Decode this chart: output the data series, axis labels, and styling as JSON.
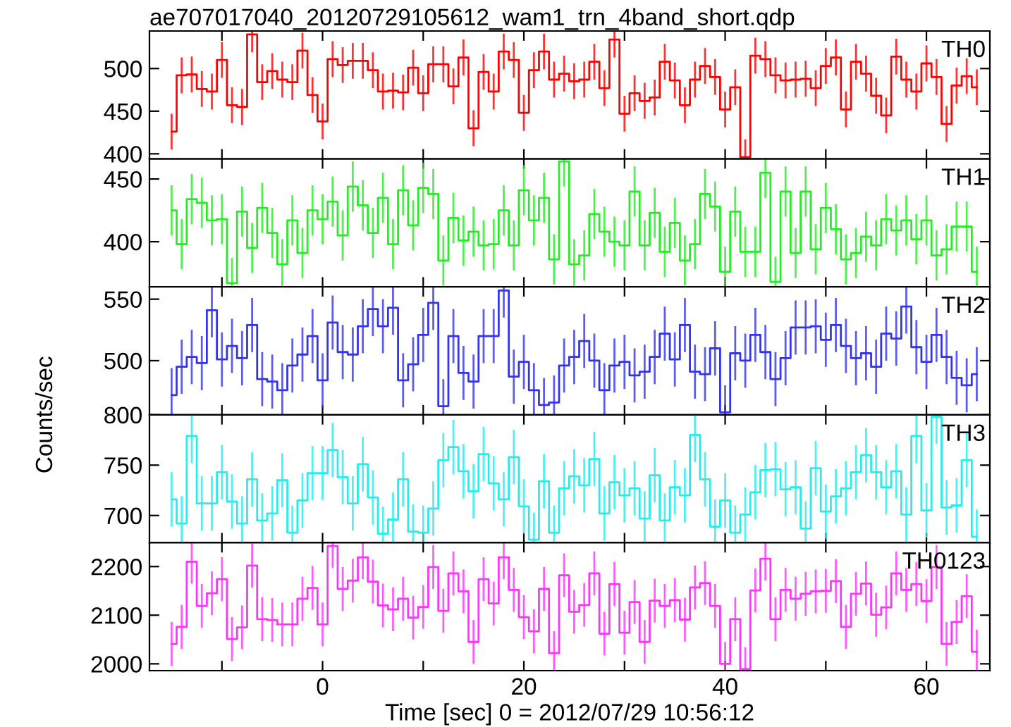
{
  "chart_data": [
    {
      "type": "step",
      "title": "ae707017040_20120729105612_wam1_trn_4band_short.qdp",
      "annotations": [
        "TH0"
      ],
      "tick_labels": "y",
      "grid": false,
      "xlim": [
        -17.2,
        66.3
      ],
      "xticks": [
        {
          "value": -10,
          "label": null
        },
        {
          "value": 0,
          "label": null
        },
        {
          "value": 10,
          "label": null
        },
        {
          "value": 20,
          "label": null
        },
        {
          "value": 30,
          "label": null
        },
        {
          "value": 40,
          "label": null
        },
        {
          "value": 50,
          "label": null
        },
        {
          "value": 60,
          "label": null
        }
      ],
      "ylim": [
        394,
        544
      ],
      "yticks": [
        400,
        450,
        500
      ],
      "x": [
        -15,
        -14,
        -13,
        -12,
        -11,
        -10,
        -9,
        -8,
        -7,
        -6,
        -5,
        -4,
        -3,
        -2,
        -1,
        0,
        1,
        2,
        3,
        4,
        5,
        6,
        7,
        8,
        9,
        10,
        11,
        12,
        13,
        14,
        15,
        16,
        17,
        18,
        19,
        20,
        21,
        22,
        23,
        24,
        25,
        26,
        27,
        28,
        29,
        30,
        31,
        32,
        33,
        34,
        35,
        36,
        37,
        38,
        39,
        40,
        41,
        42,
        43,
        44,
        45,
        46,
        47,
        48,
        49,
        50,
        51,
        52,
        53,
        54,
        55,
        56,
        57,
        58,
        59,
        60,
        61,
        62,
        63,
        64,
        65
      ],
      "series": [
        {
          "color": "#ff0000",
          "values": [
            426,
            492,
            493,
            476,
            473,
            510,
            457,
            455,
            540,
            484,
            497,
            487,
            484,
            521,
            469,
            438,
            511,
            504,
            509,
            509,
            498,
            473,
            474,
            472,
            501,
            471,
            505,
            505,
            479,
            513,
            430,
            496,
            473,
            520,
            510,
            448,
            498,
            520,
            487,
            494,
            485,
            487,
            508,
            477,
            534,
            447,
            471,
            462,
            466,
            508,
            486,
            457,
            487,
            503,
            490,
            452,
            478,
            396,
            515,
            511,
            492,
            486,
            487,
            488,
            477,
            503,
            513,
            452,
            508,
            494,
            468,
            445,
            514,
            487,
            473,
            506,
            490,
            435,
            480,
            491,
            478
          ],
          "errors": [
            21,
            21,
            21,
            21,
            21,
            21,
            21,
            21,
            21,
            21,
            21,
            21,
            21,
            21,
            21,
            21,
            21,
            21,
            21,
            21,
            21,
            21,
            21,
            21,
            21,
            21,
            21,
            21,
            21,
            21,
            21,
            21,
            21,
            21,
            21,
            21,
            21,
            21,
            21,
            21,
            21,
            21,
            21,
            21,
            21,
            21,
            21,
            21,
            21,
            21,
            21,
            21,
            21,
            21,
            21,
            21,
            21,
            21,
            21,
            21,
            21,
            21,
            21,
            21,
            21,
            21,
            21,
            21,
            21,
            21,
            21,
            21,
            21,
            21,
            21,
            21,
            21,
            21,
            21,
            21,
            21
          ]
        }
      ]
    },
    {
      "type": "step",
      "annotations": [
        "TH1"
      ],
      "tick_labels": "y",
      "grid": false,
      "xlim": [
        -17.2,
        66.3
      ],
      "xticks": [
        {
          "value": -10,
          "label": null
        },
        {
          "value": 0,
          "label": null
        },
        {
          "value": 10,
          "label": null
        },
        {
          "value": 20,
          "label": null
        },
        {
          "value": 30,
          "label": null
        },
        {
          "value": 40,
          "label": null
        },
        {
          "value": 50,
          "label": null
        },
        {
          "value": 60,
          "label": null
        }
      ],
      "ylim": [
        364,
        466
      ],
      "yticks": [
        400,
        450
      ],
      "x": [
        -15,
        -14,
        -13,
        -12,
        -11,
        -10,
        -9,
        -8,
        -7,
        -6,
        -5,
        -4,
        -3,
        -2,
        -1,
        0,
        1,
        2,
        3,
        4,
        5,
        6,
        7,
        8,
        9,
        10,
        11,
        12,
        13,
        14,
        15,
        16,
        17,
        18,
        19,
        20,
        21,
        22,
        23,
        24,
        25,
        26,
        27,
        28,
        29,
        30,
        31,
        32,
        33,
        34,
        35,
        36,
        37,
        38,
        39,
        40,
        41,
        42,
        43,
        44,
        45,
        46,
        47,
        48,
        49,
        50,
        51,
        52,
        53,
        54,
        55,
        56,
        57,
        58,
        59,
        60,
        61,
        62,
        63,
        64,
        65
      ],
      "series": [
        {
          "color": "#22ee22",
          "values": [
            425,
            398,
            434,
            431,
            417,
            418,
            367,
            424,
            395,
            427,
            407,
            382,
            417,
            391,
            425,
            418,
            432,
            405,
            444,
            429,
            407,
            435,
            398,
            441,
            413,
            443,
            438,
            385,
            419,
            401,
            408,
            397,
            398,
            425,
            397,
            441,
            417,
            435,
            386,
            464,
            382,
            389,
            422,
            408,
            400,
            397,
            440,
            397,
            423,
            392,
            415,
            385,
            398,
            438,
            428,
            376,
            424,
            392,
            392,
            455,
            368,
            440,
            391,
            440,
            394,
            427,
            410,
            386,
            391,
            404,
            397,
            418,
            409,
            417,
            402,
            417,
            389,
            394,
            412,
            412,
            376
          ],
          "errors": [
            20,
            20,
            20,
            20,
            20,
            20,
            20,
            20,
            20,
            20,
            20,
            20,
            20,
            20,
            20,
            20,
            20,
            20,
            20,
            20,
            20,
            20,
            20,
            20,
            20,
            20,
            20,
            20,
            20,
            20,
            20,
            20,
            20,
            20,
            20,
            20,
            20,
            20,
            20,
            20,
            20,
            20,
            20,
            20,
            20,
            20,
            20,
            20,
            20,
            20,
            20,
            20,
            20,
            20,
            20,
            20,
            20,
            20,
            20,
            20,
            20,
            20,
            20,
            20,
            20,
            20,
            20,
            20,
            20,
            20,
            20,
            20,
            20,
            20,
            20,
            20,
            20,
            20,
            20,
            20,
            20
          ]
        }
      ]
    },
    {
      "type": "step",
      "annotations": [
        "TH2"
      ],
      "tick_labels": "y",
      "grid": false,
      "xlim": [
        -17.2,
        66.3
      ],
      "xticks": [
        {
          "value": -10,
          "label": null
        },
        {
          "value": 0,
          "label": null
        },
        {
          "value": 10,
          "label": null
        },
        {
          "value": 20,
          "label": null
        },
        {
          "value": 30,
          "label": null
        },
        {
          "value": 40,
          "label": null
        },
        {
          "value": 50,
          "label": null
        },
        {
          "value": 60,
          "label": null
        }
      ],
      "ylim": [
        456,
        560
      ],
      "yticks": [
        500,
        550
      ],
      "x": [
        -15,
        -14,
        -13,
        -12,
        -11,
        -10,
        -9,
        -8,
        -7,
        -6,
        -5,
        -4,
        -3,
        -2,
        -1,
        0,
        1,
        2,
        3,
        4,
        5,
        6,
        7,
        8,
        9,
        10,
        11,
        12,
        13,
        14,
        15,
        16,
        17,
        18,
        19,
        20,
        21,
        22,
        23,
        24,
        25,
        26,
        27,
        28,
        29,
        30,
        31,
        32,
        33,
        34,
        35,
        36,
        37,
        38,
        39,
        40,
        41,
        42,
        43,
        44,
        45,
        46,
        47,
        48,
        49,
        50,
        51,
        52,
        53,
        54,
        55,
        56,
        57,
        58,
        59,
        60,
        61,
        62,
        63,
        64,
        65
      ],
      "series": [
        {
          "color": "#3333ee",
          "values": [
            472,
            495,
            503,
            498,
            541,
            501,
            512,
            502,
            529,
            485,
            483,
            476,
            496,
            505,
            520,
            484,
            531,
            507,
            505,
            528,
            542,
            528,
            543,
            484,
            497,
            521,
            547,
            463,
            520,
            490,
            483,
            520,
            520,
            557,
            487,
            499,
            476,
            464,
            466,
            496,
            503,
            516,
            500,
            476,
            496,
            499,
            488,
            491,
            503,
            522,
            501,
            529,
            491,
            489,
            510,
            458,
            506,
            500,
            521,
            507,
            485,
            502,
            527,
            527,
            528,
            517,
            529,
            512,
            502,
            506,
            495,
            522,
            518,
            544,
            511,
            499,
            521,
            503,
            486,
            480,
            489
          ],
          "errors": [
            22,
            22,
            22,
            22,
            22,
            22,
            22,
            22,
            22,
            22,
            22,
            22,
            22,
            22,
            22,
            22,
            22,
            22,
            22,
            22,
            22,
            22,
            22,
            22,
            22,
            22,
            22,
            22,
            22,
            22,
            22,
            22,
            22,
            22,
            22,
            22,
            22,
            22,
            22,
            22,
            22,
            22,
            22,
            22,
            22,
            22,
            22,
            22,
            22,
            22,
            22,
            22,
            22,
            22,
            22,
            22,
            22,
            22,
            22,
            22,
            22,
            22,
            22,
            22,
            22,
            22,
            22,
            22,
            22,
            22,
            22,
            22,
            22,
            22,
            22,
            22,
            22,
            22,
            22,
            22,
            22
          ]
        }
      ]
    },
    {
      "type": "step",
      "annotations": [
        "TH3"
      ],
      "ylabel": "Counts/sec",
      "tick_labels": "y",
      "grid": false,
      "xlim": [
        -17.2,
        66.3
      ],
      "xticks": [
        {
          "value": -10,
          "label": null
        },
        {
          "value": 0,
          "label": null
        },
        {
          "value": 10,
          "label": null
        },
        {
          "value": 20,
          "label": null
        },
        {
          "value": 30,
          "label": null
        },
        {
          "value": 40,
          "label": null
        },
        {
          "value": 50,
          "label": null
        },
        {
          "value": 60,
          "label": null
        }
      ],
      "ylim": [
        673,
        800
      ],
      "yticks": [
        700,
        750,
        800
      ],
      "x": [
        -15,
        -14,
        -13,
        -12,
        -11,
        -10,
        -9,
        -8,
        -7,
        -6,
        -5,
        -4,
        -3,
        -2,
        -1,
        0,
        1,
        2,
        3,
        4,
        5,
        6,
        7,
        8,
        9,
        10,
        11,
        12,
        13,
        14,
        15,
        16,
        17,
        18,
        19,
        20,
        21,
        22,
        23,
        24,
        25,
        26,
        27,
        28,
        29,
        30,
        31,
        32,
        33,
        34,
        35,
        36,
        37,
        38,
        39,
        40,
        41,
        42,
        43,
        44,
        45,
        46,
        47,
        48,
        49,
        50,
        51,
        52,
        53,
        54,
        55,
        56,
        57,
        58,
        59,
        60,
        61,
        62,
        63,
        64,
        65
      ],
      "series": [
        {
          "color": "#22eeee",
          "values": [
            716,
            692,
            779,
            712,
            712,
            743,
            714,
            692,
            736,
            695,
            702,
            735,
            683,
            715,
            742,
            742,
            765,
            738,
            712,
            751,
            718,
            682,
            696,
            736,
            684,
            683,
            707,
            755,
            768,
            744,
            724,
            761,
            732,
            716,
            758,
            709,
            676,
            734,
            683,
            727,
            739,
            730,
            756,
            702,
            733,
            720,
            727,
            697,
            740,
            695,
            728,
            720,
            780,
            736,
            689,
            715,
            683,
            701,
            723,
            745,
            746,
            726,
            728,
            687,
            747,
            704,
            719,
            727,
            743,
            760,
            743,
            728,
            744,
            701,
            779,
            705,
            798,
            708,
            710,
            755,
            679
          ],
          "errors": [
            27,
            27,
            27,
            27,
            27,
            27,
            27,
            27,
            27,
            27,
            27,
            27,
            27,
            27,
            27,
            27,
            27,
            27,
            27,
            27,
            27,
            27,
            27,
            27,
            27,
            27,
            27,
            27,
            27,
            27,
            27,
            27,
            27,
            27,
            27,
            27,
            27,
            27,
            27,
            27,
            27,
            27,
            27,
            27,
            27,
            27,
            27,
            27,
            27,
            27,
            27,
            27,
            27,
            27,
            27,
            27,
            27,
            27,
            27,
            27,
            27,
            27,
            27,
            27,
            27,
            27,
            27,
            27,
            27,
            27,
            27,
            27,
            27,
            27,
            27,
            27,
            27,
            27,
            27,
            27,
            27
          ]
        }
      ]
    },
    {
      "type": "step",
      "annotations": [
        "TH0123"
      ],
      "xlabel": "Time [sec] 0 = 2012/07/29 10:56:12",
      "grid": false,
      "xlim": [
        -17.2,
        66.3
      ],
      "xticks": [
        {
          "value": -10,
          "label": null
        },
        0,
        {
          "value": 10,
          "label": null
        },
        20,
        {
          "value": 30,
          "label": null
        },
        40,
        {
          "value": 50,
          "label": null
        },
        60
      ],
      "ylim": [
        1986,
        2249
      ],
      "yticks": [
        2000,
        2100,
        2200
      ],
      "x": [
        -15,
        -14,
        -13,
        -12,
        -11,
        -10,
        -9,
        -8,
        -7,
        -6,
        -5,
        -4,
        -3,
        -2,
        -1,
        0,
        1,
        2,
        3,
        4,
        5,
        6,
        7,
        8,
        9,
        10,
        11,
        12,
        13,
        14,
        15,
        16,
        17,
        18,
        19,
        20,
        21,
        22,
        23,
        24,
        25,
        26,
        27,
        28,
        29,
        30,
        31,
        32,
        33,
        34,
        35,
        36,
        37,
        38,
        39,
        40,
        41,
        42,
        43,
        44,
        45,
        46,
        47,
        48,
        49,
        50,
        51,
        52,
        53,
        54,
        55,
        56,
        57,
        58,
        59,
        60,
        61,
        62,
        63,
        64,
        65
      ],
      "series": [
        {
          "color": "#ff33ff",
          "values": [
            2041,
            2076,
            2210,
            2119,
            2145,
            2174,
            2051,
            2075,
            2202,
            2092,
            2090,
            2081,
            2081,
            2134,
            2156,
            2081,
            2242,
            2154,
            2171,
            2219,
            2169,
            2120,
            2112,
            2134,
            2095,
            2117,
            2199,
            2109,
            2186,
            2149,
            2045,
            2174,
            2124,
            2219,
            2152,
            2096,
            2067,
            2154,
            2022,
            2182,
            2107,
            2121,
            2186,
            2062,
            2164,
            2064,
            2127,
            2045,
            2130,
            2119,
            2131,
            2091,
            2157,
            2166,
            2119,
            2000,
            2092,
            1989,
            2151,
            2216,
            2092,
            2152,
            2134,
            2144,
            2149,
            2150,
            2170,
            2076,
            2144,
            2165,
            2101,
            2116,
            2186,
            2152,
            2164,
            2129,
            2199,
            2041,
            2086,
            2139,
            2025
          ],
          "errors": [
            45,
            45,
            45,
            45,
            45,
            45,
            45,
            45,
            45,
            45,
            45,
            45,
            45,
            45,
            45,
            45,
            45,
            45,
            45,
            45,
            45,
            45,
            45,
            45,
            45,
            45,
            45,
            45,
            45,
            45,
            45,
            45,
            45,
            45,
            45,
            45,
            45,
            45,
            45,
            45,
            45,
            45,
            45,
            45,
            45,
            45,
            45,
            45,
            45,
            45,
            45,
            45,
            45,
            45,
            45,
            45,
            45,
            45,
            45,
            45,
            45,
            45,
            45,
            45,
            45,
            45,
            45,
            45,
            45,
            45,
            45,
            45,
            45,
            45,
            45,
            45,
            45,
            45,
            45,
            45,
            45
          ]
        }
      ]
    }
  ]
}
